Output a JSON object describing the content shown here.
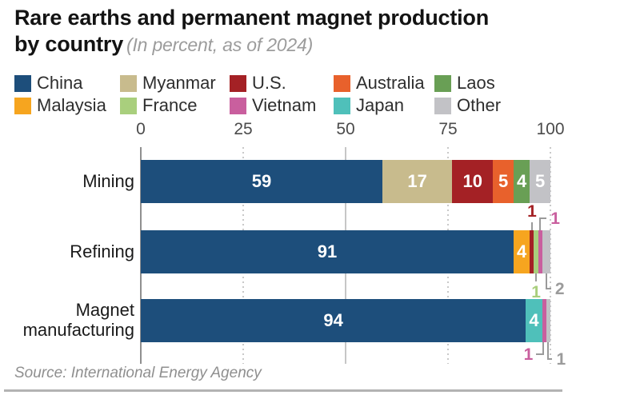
{
  "header": {
    "title_line1": "Rare earths and permanent magnet production",
    "title_line2": "by country",
    "subtitle": "(In percent, as of 2024)"
  },
  "legend": {
    "items": [
      {
        "label": "China",
        "color": "#1d4e7b"
      },
      {
        "label": "Myanmar",
        "color": "#c8bb8d"
      },
      {
        "label": "U.S.",
        "color": "#a42125"
      },
      {
        "label": "Australia",
        "color": "#e8612c"
      },
      {
        "label": "Laos",
        "color": "#699f55"
      },
      {
        "label": "Malaysia",
        "color": "#f6a51f"
      },
      {
        "label": "France",
        "color": "#a9cf7d"
      },
      {
        "label": "Vietnam",
        "color": "#c95f9e"
      },
      {
        "label": "Japan",
        "color": "#4fc0ba"
      },
      {
        "label": "Other",
        "color": "#c2c2c6"
      }
    ]
  },
  "source": "Source: International Energy Agency",
  "colors": {
    "callout_line": "#9a9a9a",
    "callout_gray_label": "#9b9b9b",
    "axis_line": "#8f8f8f",
    "grid_dotted": "#c9c9c9",
    "grid_solid": "#c6c6c6",
    "rule": "#b3b3b3"
  },
  "chart_data": {
    "type": "bar",
    "orientation": "horizontal-stacked",
    "title": "Rare earths and permanent magnet production by country",
    "subtitle": "(In percent, as of 2024)",
    "xlabel": "",
    "ylabel": "",
    "unit": "percent",
    "xlim": [
      0,
      100
    ],
    "ticks": [
      0,
      25,
      50,
      75,
      100
    ],
    "grid": "vertical; dotted at 25/75/100, solid at 0/50",
    "legend_position": "top",
    "categories": [
      "Mining",
      "Refining",
      "Magnet manufacturing"
    ],
    "colors": {
      "China": "#1d4e7b",
      "Myanmar": "#c8bb8d",
      "U.S.": "#a42125",
      "Australia": "#e8612c",
      "Laos": "#699f55",
      "Malaysia": "#f6a51f",
      "France": "#a9cf7d",
      "Vietnam": "#c95f9e",
      "Japan": "#4fc0ba",
      "Other": "#c2c2c6"
    },
    "rows": [
      {
        "label": "Mining",
        "segments": [
          {
            "country": "China",
            "value": 59,
            "label_placement": "inside"
          },
          {
            "country": "Myanmar",
            "value": 17,
            "label_placement": "inside"
          },
          {
            "country": "U.S.",
            "value": 10,
            "label_placement": "inside"
          },
          {
            "country": "Australia",
            "value": 5,
            "label_placement": "inside"
          },
          {
            "country": "Laos",
            "value": 4,
            "label_placement": "inside"
          },
          {
            "country": "Other",
            "value": 5,
            "label_placement": "inside"
          }
        ]
      },
      {
        "label": "Refining",
        "segments": [
          {
            "country": "China",
            "value": 91,
            "label_placement": "inside"
          },
          {
            "country": "Malaysia",
            "value": 4,
            "label_placement": "inside"
          },
          {
            "country": "U.S.",
            "value": 1,
            "label_placement": "above"
          },
          {
            "country": "France",
            "value": 1,
            "label_placement": "below"
          },
          {
            "country": "Vietnam",
            "value": 1,
            "label_placement": "above"
          },
          {
            "country": "Other",
            "value": 2,
            "label_placement": "below"
          }
        ]
      },
      {
        "label": "Magnet manufacturing",
        "segments": [
          {
            "country": "China",
            "value": 94,
            "label_placement": "inside"
          },
          {
            "country": "Japan",
            "value": 4,
            "label_placement": "inside"
          },
          {
            "country": "Vietnam",
            "value": 1,
            "label_placement": "below"
          },
          {
            "country": "Other",
            "value": 1,
            "label_placement": "below"
          }
        ]
      }
    ]
  }
}
